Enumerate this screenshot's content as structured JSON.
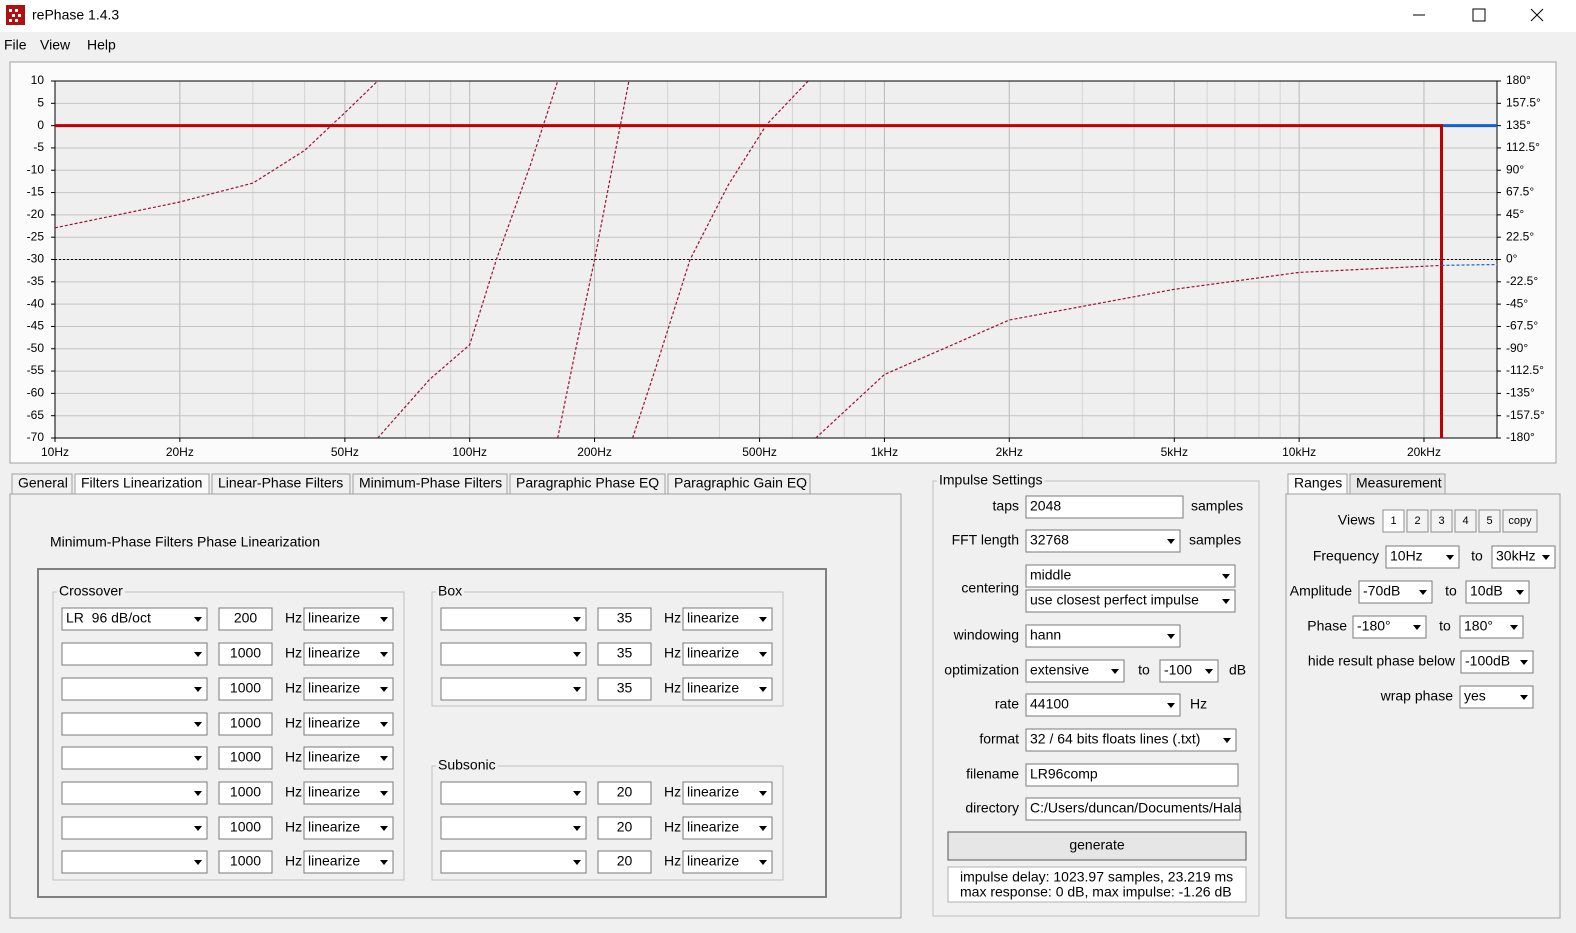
{
  "window": {
    "title": "rePhase 1.4.3"
  },
  "menu": [
    "File",
    "View",
    "Help"
  ],
  "chart_data": {
    "type": "line",
    "xlim": [
      10,
      30000
    ],
    "log_x": true,
    "xticks": [
      {
        "value": 10,
        "label": "10Hz"
      },
      {
        "value": 20,
        "label": "20Hz"
      },
      {
        "value": 50,
        "label": "50Hz"
      },
      {
        "value": 100,
        "label": "100Hz"
      },
      {
        "value": 200,
        "label": "200Hz"
      },
      {
        "value": 500,
        "label": "500Hz"
      },
      {
        "value": 1000,
        "label": "1kHz"
      },
      {
        "value": 2000,
        "label": "2kHz"
      },
      {
        "value": 5000,
        "label": "5kHz"
      },
      {
        "value": 10000,
        "label": "10kHz"
      },
      {
        "value": 20000,
        "label": "20kHz"
      }
    ],
    "x_minor_grid": [
      30,
      40,
      60,
      70,
      80,
      90,
      300,
      400,
      600,
      700,
      800,
      900,
      3000,
      4000,
      6000,
      7000,
      8000,
      9000
    ],
    "ylim": [
      -70,
      10
    ],
    "yticks": [
      10,
      5,
      0,
      -5,
      -10,
      -15,
      -20,
      -25,
      -30,
      -35,
      -40,
      -45,
      -50,
      -55,
      -60,
      -65,
      -70
    ],
    "y2lim": [
      -180,
      180
    ],
    "y2ticks": [
      {
        "value": 180,
        "label": "180°"
      },
      {
        "value": 157.5,
        "label": "157.5°"
      },
      {
        "value": 135,
        "label": "135°"
      },
      {
        "value": 112.5,
        "label": "112.5°"
      },
      {
        "value": 90,
        "label": "90°"
      },
      {
        "value": 67.5,
        "label": "67.5°"
      },
      {
        "value": 45,
        "label": "45°"
      },
      {
        "value": 22.5,
        "label": "22.5°"
      },
      {
        "value": 0,
        "label": "0°"
      },
      {
        "value": -22.5,
        "label": "-22.5°"
      },
      {
        "value": -45,
        "label": "-45°"
      },
      {
        "value": -67.5,
        "label": "-67.5°"
      },
      {
        "value": -90,
        "label": "-90°"
      },
      {
        "value": -112.5,
        "label": "-112.5°"
      },
      {
        "value": -135,
        "label": "-135°"
      },
      {
        "value": -157.5,
        "label": "-157.5°"
      },
      {
        "value": -180,
        "label": "-180°"
      }
    ],
    "grid": true,
    "series": [
      {
        "color": "#1560d0",
        "x": [
          22050,
          30000
        ],
        "values": [
          0,
          0
        ]
      },
      {
        "color": "#c00000",
        "x": [
          10,
          22050,
          22050
        ],
        "values": [
          0,
          0,
          -70
        ]
      },
      {
        "color": "#1560d0",
        "axis": "y2",
        "style": "dashed",
        "x": [
          22050,
          30000
        ],
        "values": [
          -6,
          -5
        ]
      },
      {
        "color": "#a01030",
        "axis": "y2",
        "style": "dashed",
        "x": [
          10,
          20,
          30,
          40,
          50,
          60,
          null,
          60,
          80,
          100,
          116,
          140,
          163,
          null,
          163,
          180,
          200,
          220,
          242,
          null,
          247,
          280,
          340,
          420,
          520,
          655,
          null,
          683,
          1000,
          2000,
          5000,
          10000,
          22050
        ],
        "values": [
          32,
          58,
          77,
          110,
          148,
          180,
          null,
          -180,
          -121,
          -86,
          0,
          95,
          180,
          null,
          -180,
          -91,
          0,
          90,
          180,
          null,
          -180,
          -111,
          0,
          75,
          136,
          180,
          null,
          -180,
          -116,
          -61,
          -30,
          -13,
          -6
        ]
      }
    ]
  },
  "tabs": [
    "General",
    "Filters Linearization",
    "Linear-Phase Filters",
    "Minimum-Phase Filters",
    "Paragraphic Phase EQ",
    "Paragraphic Gain EQ"
  ],
  "panel": {
    "title": "Minimum-Phase Filters Phase Linearization",
    "crossover": {
      "label": "Crossover",
      "rows": [
        {
          "type": "LR  96 dB/oct",
          "freq": 200,
          "unit": "Hz",
          "mode": "linearize"
        },
        {
          "freq": 1000,
          "unit": "Hz",
          "mode": "linearize"
        },
        {
          "freq": 1000,
          "unit": "Hz",
          "mode": "linearize"
        },
        {
          "freq": 1000,
          "unit": "Hz",
          "mode": "linearize"
        },
        {
          "freq": 1000,
          "unit": "Hz",
          "mode": "linearize"
        },
        {
          "freq": 1000,
          "unit": "Hz",
          "mode": "linearize"
        },
        {
          "freq": 1000,
          "unit": "Hz",
          "mode": "linearize"
        },
        {
          "freq": 1000,
          "unit": "Hz",
          "mode": "linearize"
        }
      ]
    },
    "box": {
      "label": "Box",
      "rows": [
        {
          "freq": 35,
          "unit": "Hz",
          "mode": "linearize"
        },
        {
          "freq": 35,
          "unit": "Hz",
          "mode": "linearize"
        },
        {
          "freq": 35,
          "unit": "Hz",
          "mode": "linearize"
        }
      ]
    },
    "subsonic": {
      "label": "Subsonic",
      "rows": [
        {
          "freq": 20,
          "unit": "Hz",
          "mode": "linearize"
        },
        {
          "freq": 20,
          "unit": "Hz",
          "mode": "linearize"
        },
        {
          "freq": 20,
          "unit": "Hz",
          "mode": "linearize"
        }
      ]
    }
  },
  "impulse": {
    "title": "Impulse Settings",
    "taps": {
      "label": "taps",
      "value": 2048,
      "unit": "samples"
    },
    "fft": {
      "label": "FFT length",
      "value": 32768,
      "unit": "samples"
    },
    "centering": {
      "label": "centering",
      "values": [
        "middle",
        "use closest perfect impulse"
      ]
    },
    "windowing": {
      "label": "windowing",
      "value": "hann"
    },
    "optimization": {
      "label": "optimization",
      "value": "extensive",
      "to_label": "to",
      "to_value": -100,
      "unit": "dB"
    },
    "rate": {
      "label": "rate",
      "value": 44100,
      "unit": "Hz"
    },
    "format": {
      "label": "format",
      "value": "32 / 64 bits floats lines (.txt)"
    },
    "filename": {
      "label": "filename",
      "value": "LR96comp"
    },
    "directory": {
      "label": "directory",
      "value": "C:/Users/duncan/Documents/Hala"
    },
    "button": "generate",
    "status": [
      "impulse delay: 1023.97 samples, 23.219 ms",
      "max response: 0 dB, max impulse: -1.26 dB"
    ]
  },
  "ranges": {
    "tabs": [
      "Ranges",
      "Measurement"
    ],
    "views": {
      "label": "Views",
      "buttons": [
        1,
        2,
        3,
        4,
        5,
        "copy"
      ]
    },
    "frequency": {
      "label": "Frequency",
      "from": "10Hz",
      "to_label": "to",
      "to": "30kHz"
    },
    "amplitude": {
      "label": "Amplitude",
      "from": "-70dB",
      "to_label": "to",
      "to": "10dB"
    },
    "phase": {
      "label": "Phase",
      "from": "-180°",
      "to_label": "to",
      "to": "180°"
    },
    "hide": {
      "label": "hide result phase below",
      "value": "-100dB"
    },
    "wrap": {
      "label": "wrap phase",
      "value": "yes"
    }
  }
}
